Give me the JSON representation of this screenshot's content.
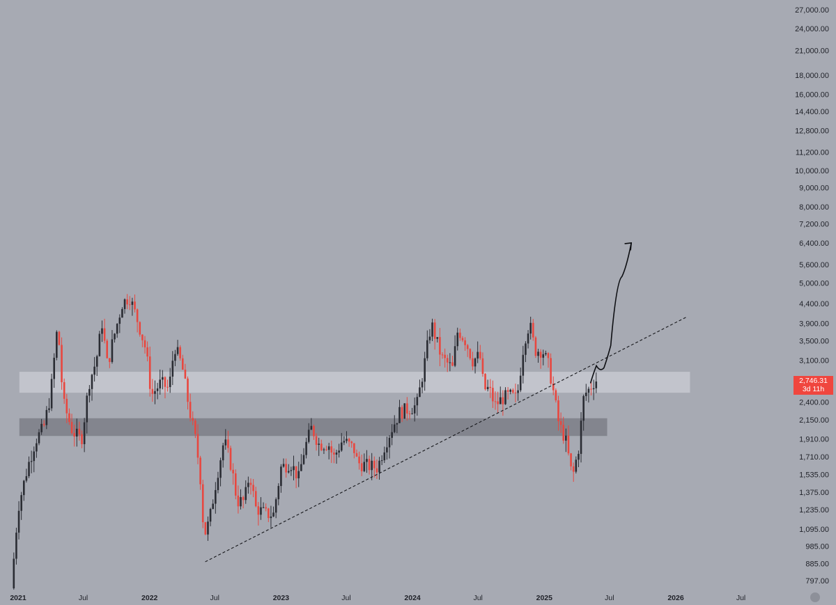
{
  "chart_data": {
    "type": "candlestick",
    "scale": "log",
    "ylim": [
      760,
      27800
    ],
    "y_ticks": [
      27000,
      24000,
      21000,
      18000,
      16000,
      14400,
      12800,
      11200,
      10000,
      9000,
      8000,
      7200,
      6400,
      5600,
      5000,
      4400,
      3900,
      3500,
      3100,
      2400,
      2150,
      1910,
      1710,
      1535,
      1375,
      1235,
      1095,
      985,
      885,
      797
    ],
    "y_tick_labels": [
      "27,000.00",
      "24,000.00",
      "21,000.00",
      "18,000.00",
      "16,000.00",
      "14,400.00",
      "12,800.00",
      "11,200.00",
      "10,000.00",
      "9,000.00",
      "8,000.00",
      "7,200.00",
      "6,400.00",
      "5,600.00",
      "5,000.00",
      "4,400.00",
      "3,900.00",
      "3,500.00",
      "3,100.00",
      "2,400.00",
      "2,150.00",
      "1,910.00",
      "1,710.00",
      "1,535.00",
      "1,375.00",
      "1,235.00",
      "1,095.00",
      "985.00",
      "885.00",
      "797.00"
    ],
    "x_ticks": [
      {
        "label": "2021",
        "date": "2021-01-01",
        "year": true
      },
      {
        "label": "Jul",
        "date": "2021-07-01",
        "year": false
      },
      {
        "label": "2022",
        "date": "2022-01-01",
        "year": true
      },
      {
        "label": "Jul",
        "date": "2022-07-01",
        "year": false
      },
      {
        "label": "2023",
        "date": "2023-01-01",
        "year": true
      },
      {
        "label": "Jul",
        "date": "2023-07-01",
        "year": false
      },
      {
        "label": "2024",
        "date": "2024-01-01",
        "year": true
      },
      {
        "label": "Jul",
        "date": "2024-07-01",
        "year": false
      },
      {
        "label": "2025",
        "date": "2025-01-01",
        "year": true
      },
      {
        "label": "Jul",
        "date": "2025-07-01",
        "year": false
      },
      {
        "label": "2026",
        "date": "2026-01-01",
        "year": true
      },
      {
        "label": "Jul",
        "date": "2026-07-01",
        "year": false
      }
    ],
    "price_path": [
      [
        "2021-01-01",
        760
      ],
      [
        "2021-01-20",
        1250
      ],
      [
        "2021-02-15",
        1600
      ],
      [
        "2021-03-10",
        1900
      ],
      [
        "2021-04-01",
        2050
      ],
      [
        "2021-04-20",
        2500
      ],
      [
        "2021-05-10",
        3900
      ],
      [
        "2021-05-25",
        2400
      ],
      [
        "2021-06-20",
        2000
      ],
      [
        "2021-07-15",
        1900
      ],
      [
        "2021-08-05",
        2700
      ],
      [
        "2021-08-25",
        3100
      ],
      [
        "2021-09-10",
        3900
      ],
      [
        "2021-09-25",
        3000
      ],
      [
        "2021-10-10",
        3500
      ],
      [
        "2021-11-05",
        4400
      ],
      [
        "2021-11-25",
        4600
      ],
      [
        "2021-12-20",
        3900
      ],
      [
        "2022-01-10",
        3300
      ],
      [
        "2022-01-25",
        2500
      ],
      [
        "2022-02-20",
        2700
      ],
      [
        "2022-03-15",
        2600
      ],
      [
        "2022-03-30",
        3400
      ],
      [
        "2022-04-20",
        3000
      ],
      [
        "2022-05-10",
        2300
      ],
      [
        "2022-05-30",
        1850
      ],
      [
        "2022-06-10",
        1500
      ],
      [
        "2022-06-20",
        1050
      ],
      [
        "2022-07-05",
        1150
      ],
      [
        "2022-07-25",
        1500
      ],
      [
        "2022-08-15",
        1900
      ],
      [
        "2022-09-05",
        1600
      ],
      [
        "2022-09-20",
        1300
      ],
      [
        "2022-10-10",
        1300
      ],
      [
        "2022-10-25",
        1550
      ],
      [
        "2022-11-10",
        1250
      ],
      [
        "2022-12-10",
        1200
      ],
      [
        "2022-12-30",
        1200
      ],
      [
        "2023-01-20",
        1600
      ],
      [
        "2023-02-15",
        1650
      ],
      [
        "2023-03-10",
        1500
      ],
      [
        "2023-03-25",
        1780
      ],
      [
        "2023-04-15",
        2050
      ],
      [
        "2023-05-05",
        1850
      ],
      [
        "2023-06-01",
        1850
      ],
      [
        "2023-06-15",
        1700
      ],
      [
        "2023-07-10",
        1900
      ],
      [
        "2023-08-10",
        1800
      ],
      [
        "2023-08-20",
        1650
      ],
      [
        "2023-09-15",
        1620
      ],
      [
        "2023-10-15",
        1600
      ],
      [
        "2023-11-05",
        1850
      ],
      [
        "2023-11-25",
        2050
      ],
      [
        "2023-12-15",
        2250
      ],
      [
        "2024-01-10",
        2300
      ],
      [
        "2024-02-01",
        2350
      ],
      [
        "2024-02-20",
        2950
      ],
      [
        "2024-03-12",
        3900
      ],
      [
        "2024-04-10",
        3150
      ],
      [
        "2024-04-25",
        3050
      ],
      [
        "2024-05-10",
        2950
      ],
      [
        "2024-05-25",
        3750
      ],
      [
        "2024-06-15",
        3500
      ],
      [
        "2024-07-05",
        3100
      ],
      [
        "2024-07-25",
        3200
      ],
      [
        "2024-08-05",
        2600
      ],
      [
        "2024-08-20",
        2600
      ],
      [
        "2024-09-05",
        2350
      ],
      [
        "2024-09-25",
        2450
      ],
      [
        "2024-10-15",
        2500
      ],
      [
        "2024-11-05",
        2450
      ],
      [
        "2024-11-25",
        3500
      ],
      [
        "2024-12-10",
        3900
      ],
      [
        "2024-12-25",
        3300
      ],
      [
        "2025-01-15",
        3300
      ],
      [
        "2025-02-01",
        3000
      ],
      [
        "2025-02-10",
        2700
      ],
      [
        "2025-03-01",
        2100
      ],
      [
        "2025-03-20",
        1900
      ],
      [
        "2025-04-08",
        1500
      ],
      [
        "2025-04-25",
        1800
      ],
      [
        "2025-05-10",
        2500
      ],
      [
        "2025-05-25",
        2600
      ],
      [
        "2025-06-10",
        2746
      ]
    ],
    "zones": [
      {
        "from": 2540,
        "to": 2890,
        "start": "2021-01-20",
        "end": "2026-02-25",
        "kind": "light"
      },
      {
        "from": 1945,
        "to": 2170,
        "start": "2021-01-20",
        "end": "2025-07-10",
        "kind": "dark"
      }
    ],
    "trendline": {
      "start": [
        "2022-06-20",
        895
      ],
      "end": [
        "2026-02-15",
        4050
      ]
    },
    "arrow_path": [
      [
        "2025-05-25",
        2700
      ],
      [
        "2025-06-10",
        3000
      ],
      [
        "2025-07-01",
        2960
      ],
      [
        "2025-07-20",
        3400
      ],
      [
        "2025-08-20",
        5200
      ],
      [
        "2025-09-15",
        6400
      ]
    ],
    "last_price": {
      "value": 2746.31,
      "label": "2,746.31",
      "countdown": "3d 11h",
      "color": "#f0463e"
    },
    "colors": {
      "up": "#2a2c33",
      "down": "#e8473f",
      "background": "#a7aab3",
      "zone_light": "#c7c9d0",
      "zone_dark": "#7f8189",
      "axis_text": "#1f2128"
    }
  }
}
